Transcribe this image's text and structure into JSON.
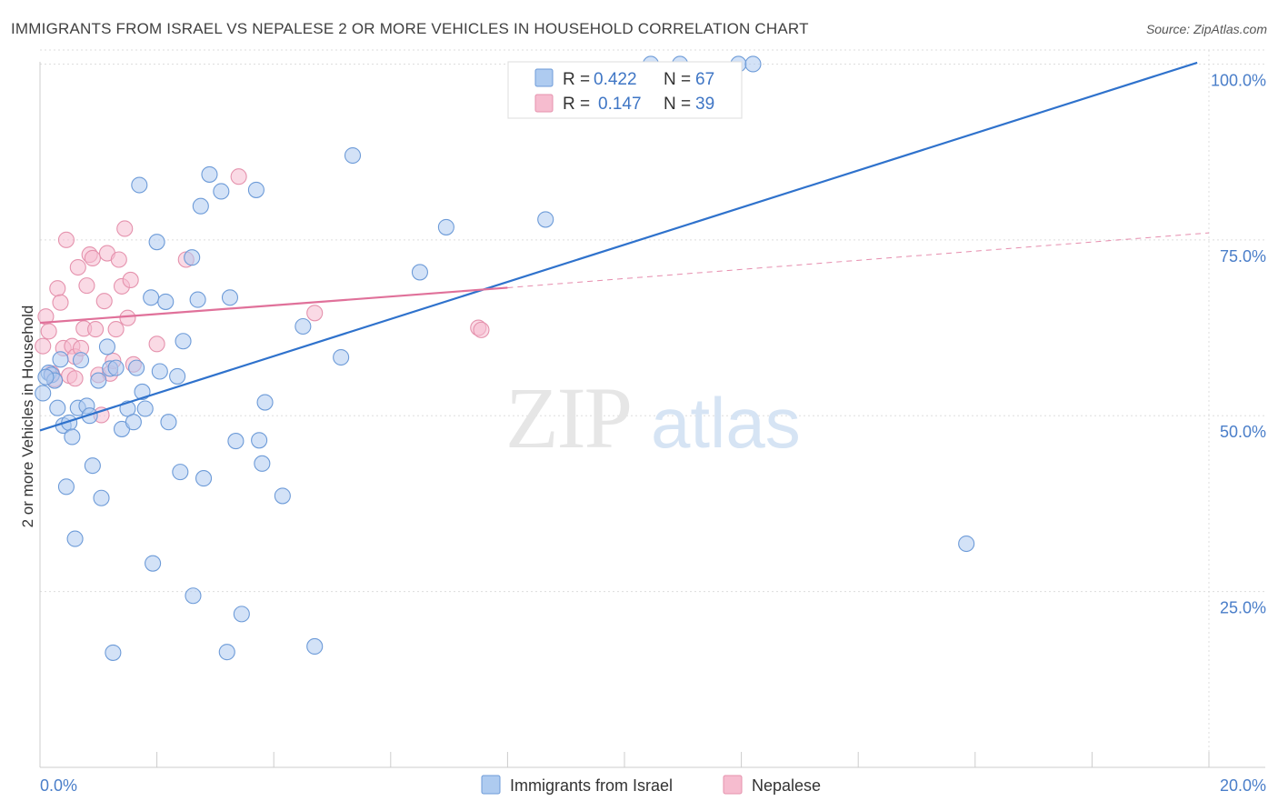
{
  "title": "IMMIGRANTS FROM ISRAEL VS NEPALESE 2 OR MORE VEHICLES IN HOUSEHOLD CORRELATION CHART",
  "source": "Source: ZipAtlas.com",
  "watermark": {
    "zip": "ZIP",
    "atlas": "atlas"
  },
  "colors": {
    "israel_fill": "#aecbf0",
    "israel_stroke": "#6d9bd8",
    "israel_line": "#2f72cc",
    "nepal_fill": "#f6bccf",
    "nepal_stroke": "#e592ad",
    "nepal_line": "#e0719a",
    "tick_text": "#4a7ec9",
    "grid": "#dddddd"
  },
  "legend_top": [
    {
      "r_label": "R =",
      "r_value": "0.422",
      "n_label": "N =",
      "n_value": "67"
    },
    {
      "r_label": "R =",
      "r_value": "0.147",
      "n_label": "N =",
      "n_value": "39"
    }
  ],
  "chart_data": {
    "type": "scatter",
    "title": "IMMIGRANTS FROM ISRAEL VS NEPALESE 2 OR MORE VEHICLES IN HOUSEHOLD CORRELATION CHART",
    "xlabel": "",
    "ylabel": "2 or more Vehicles in Household",
    "xlim": [
      0,
      20
    ],
    "ylim": [
      0,
      102
    ],
    "x_ticks": [
      "0.0%",
      "20.0%"
    ],
    "y_ticks": [
      "100.0%",
      "75.0%",
      "50.0%",
      "25.0%"
    ],
    "y_tick_values": [
      100,
      75,
      50,
      25
    ],
    "grid": true,
    "legend_position": "bottom",
    "series": [
      {
        "name": "Immigrants from Israel",
        "trend": {
          "x": [
            0.0,
            19.8
          ],
          "y": [
            47.9,
            100.2
          ]
        },
        "points": [
          [
            0.05,
            53.2
          ],
          [
            0.15,
            56.1
          ],
          [
            0.2,
            55.8
          ],
          [
            0.25,
            55.0
          ],
          [
            0.3,
            51.1
          ],
          [
            0.35,
            58.0
          ],
          [
            0.4,
            48.6
          ],
          [
            0.45,
            39.9
          ],
          [
            0.5,
            49.0
          ],
          [
            0.55,
            47.0
          ],
          [
            0.6,
            32.5
          ],
          [
            0.65,
            51.1
          ],
          [
            0.7,
            57.9
          ],
          [
            0.8,
            51.4
          ],
          [
            0.85,
            50.0
          ],
          [
            0.9,
            42.9
          ],
          [
            1.0,
            55.0
          ],
          [
            1.05,
            38.3
          ],
          [
            1.15,
            59.8
          ],
          [
            1.2,
            56.7
          ],
          [
            1.25,
            16.3
          ],
          [
            1.3,
            56.8
          ],
          [
            1.4,
            48.1
          ],
          [
            1.5,
            51.0
          ],
          [
            1.6,
            49.1
          ],
          [
            1.65,
            56.8
          ],
          [
            1.7,
            82.8
          ],
          [
            1.75,
            53.4
          ],
          [
            1.8,
            51.0
          ],
          [
            1.9,
            66.8
          ],
          [
            1.93,
            29.0
          ],
          [
            2.0,
            74.7
          ],
          [
            2.05,
            56.3
          ],
          [
            2.15,
            66.2
          ],
          [
            2.2,
            49.1
          ],
          [
            2.35,
            55.6
          ],
          [
            2.4,
            42.0
          ],
          [
            2.45,
            60.6
          ],
          [
            2.6,
            72.5
          ],
          [
            2.62,
            24.4
          ],
          [
            2.7,
            66.5
          ],
          [
            2.75,
            79.8
          ],
          [
            2.8,
            41.1
          ],
          [
            2.9,
            84.3
          ],
          [
            3.1,
            81.9
          ],
          [
            3.2,
            16.4
          ],
          [
            3.25,
            66.8
          ],
          [
            3.35,
            46.4
          ],
          [
            3.45,
            21.8
          ],
          [
            3.7,
            82.1
          ],
          [
            3.75,
            46.5
          ],
          [
            3.8,
            43.2
          ],
          [
            3.85,
            51.9
          ],
          [
            4.15,
            38.6
          ],
          [
            4.5,
            62.7
          ],
          [
            4.7,
            17.2
          ],
          [
            5.15,
            58.3
          ],
          [
            5.35,
            87.0
          ],
          [
            6.5,
            70.4
          ],
          [
            6.95,
            76.8
          ],
          [
            8.65,
            77.9
          ],
          [
            10.45,
            100.0
          ],
          [
            10.95,
            100.0
          ],
          [
            11.95,
            100.0
          ],
          [
            12.2,
            100.0
          ],
          [
            15.85,
            31.8
          ],
          [
            0.1,
            55.5
          ]
        ]
      },
      {
        "name": "Nepalese",
        "trend": {
          "x": [
            0.0,
            8.0
          ],
          "y": [
            63.2,
            68.2
          ]
        },
        "trend_dashed": {
          "x": [
            8.0,
            20.0
          ],
          "y": [
            68.2,
            76.0
          ]
        },
        "points": [
          [
            0.05,
            59.9
          ],
          [
            0.1,
            64.1
          ],
          [
            0.15,
            62.0
          ],
          [
            0.2,
            56.0
          ],
          [
            0.25,
            55.2
          ],
          [
            0.3,
            68.1
          ],
          [
            0.35,
            66.1
          ],
          [
            0.4,
            59.6
          ],
          [
            0.45,
            75.0
          ],
          [
            0.5,
            55.7
          ],
          [
            0.55,
            59.9
          ],
          [
            0.6,
            58.4
          ],
          [
            0.6,
            55.3
          ],
          [
            0.65,
            71.1
          ],
          [
            0.7,
            59.6
          ],
          [
            0.75,
            62.4
          ],
          [
            0.8,
            68.5
          ],
          [
            0.85,
            72.9
          ],
          [
            0.9,
            72.4
          ],
          [
            0.95,
            62.3
          ],
          [
            1.0,
            55.8
          ],
          [
            1.05,
            50.1
          ],
          [
            1.1,
            66.3
          ],
          [
            1.15,
            73.1
          ],
          [
            1.2,
            56.0
          ],
          [
            1.25,
            57.8
          ],
          [
            1.3,
            62.3
          ],
          [
            1.35,
            72.2
          ],
          [
            1.4,
            68.4
          ],
          [
            1.45,
            76.6
          ],
          [
            1.5,
            63.9
          ],
          [
            1.55,
            69.3
          ],
          [
            1.6,
            57.3
          ],
          [
            2.0,
            60.2
          ],
          [
            2.5,
            72.2
          ],
          [
            3.4,
            84.0
          ],
          [
            4.7,
            64.6
          ],
          [
            7.5,
            62.5
          ],
          [
            7.55,
            62.2
          ]
        ]
      }
    ]
  }
}
